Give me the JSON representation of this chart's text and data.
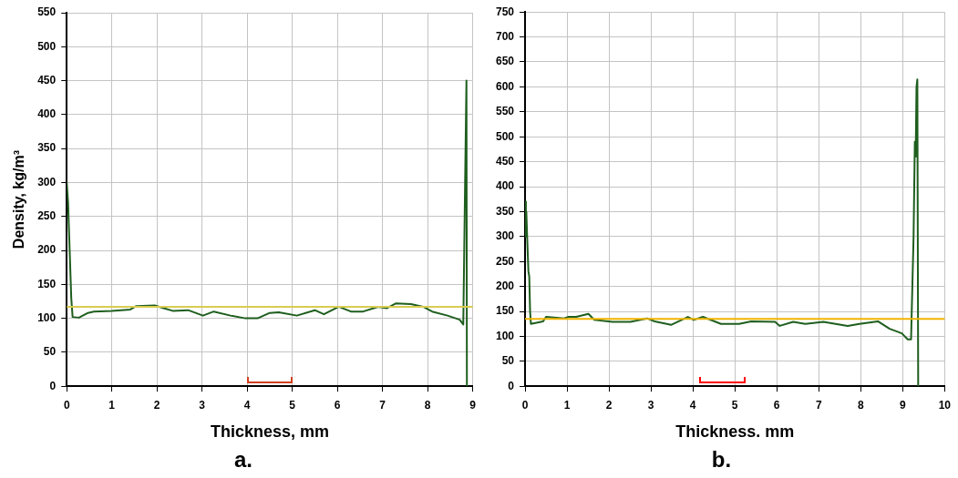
{
  "chart_data": [
    {
      "type": "line",
      "title": "a.",
      "xlabel": "Thickness, mm",
      "ylabel": "Density, kg/m³",
      "xlim": [
        0,
        9
      ],
      "xticks": [
        0,
        1,
        2,
        3,
        4,
        5,
        6,
        7,
        8,
        9
      ],
      "ylim": [
        0,
        550
      ],
      "yticks": [
        0,
        50,
        100,
        150,
        200,
        250,
        300,
        350,
        400,
        450,
        500,
        550
      ],
      "grid": true,
      "legend": false,
      "marker": "none",
      "line_style": "solid",
      "series": [
        {
          "color": "#1e5e1e",
          "x": [
            0,
            0.03,
            0.07,
            0.1,
            0.13,
            0.27,
            0.47,
            0.6,
            1.0,
            1.41,
            1.54,
            1.95,
            2.15,
            2.35,
            2.69,
            3.02,
            3.26,
            3.63,
            3.96,
            4.23,
            4.5,
            4.7,
            5.1,
            5.5,
            5.7,
            6.03,
            6.3,
            6.57,
            6.9,
            7.1,
            7.3,
            7.63,
            7.9,
            8.1,
            8.44,
            8.71,
            8.79,
            8.83,
            8.86,
            8.87
          ],
          "values": [
            300,
            270,
            190,
            130,
            102,
            101,
            108,
            110,
            111,
            113,
            118,
            119,
            115,
            111,
            112,
            104,
            110,
            104,
            100,
            100,
            108,
            109,
            104,
            112,
            106,
            117,
            110,
            110,
            117,
            115,
            122,
            121,
            117,
            110,
            104,
            98,
            91,
            300,
            450,
            0
          ]
        }
      ],
      "ref_lines": [
        {
          "axis": "y",
          "value": 117,
          "color": "#d8cc50"
        }
      ]
    },
    {
      "type": "line",
      "title": "b.",
      "xlabel": "Thickness. mm",
      "xlim": [
        0,
        10
      ],
      "xticks": [
        0,
        1,
        2,
        3,
        4,
        5,
        6,
        7,
        8,
        9,
        10
      ],
      "ylim": [
        0,
        750
      ],
      "yticks": [
        0,
        50,
        100,
        150,
        200,
        250,
        300,
        350,
        400,
        450,
        500,
        550,
        600,
        650,
        700,
        750
      ],
      "grid": true,
      "legend": false,
      "marker": "none",
      "line_style": "solid",
      "series": [
        {
          "color": "#1e5e1e",
          "x": [
            0,
            0.02,
            0.03,
            0.05,
            0.08,
            0.1,
            0.12,
            0.14,
            0.43,
            0.5,
            0.93,
            1.04,
            1.22,
            1.51,
            1.65,
            2.08,
            2.51,
            2.91,
            3.09,
            3.48,
            3.88,
            4.02,
            4.24,
            4.67,
            5.1,
            5.39,
            5.96,
            6.07,
            6.39,
            6.68,
            7.11,
            7.69,
            7.97,
            8.41,
            8.69,
            8.98,
            9.12,
            9.2,
            9.26,
            9.29,
            9.31,
            9.33,
            9.35,
            9.37
          ],
          "values": [
            370,
            300,
            350,
            300,
            230,
            220,
            150,
            125,
            130,
            139,
            136,
            139,
            139,
            145,
            133,
            129,
            129,
            136,
            130,
            123,
            139,
            133,
            139,
            125,
            125,
            130,
            129,
            121,
            129,
            125,
            129,
            121,
            125,
            130,
            115,
            106,
            94,
            94,
            300,
            490,
            460,
            600,
            615,
            0
          ]
        }
      ],
      "ref_lines": [
        {
          "axis": "y",
          "value": 135,
          "color": "#f0b400"
        }
      ]
    }
  ]
}
